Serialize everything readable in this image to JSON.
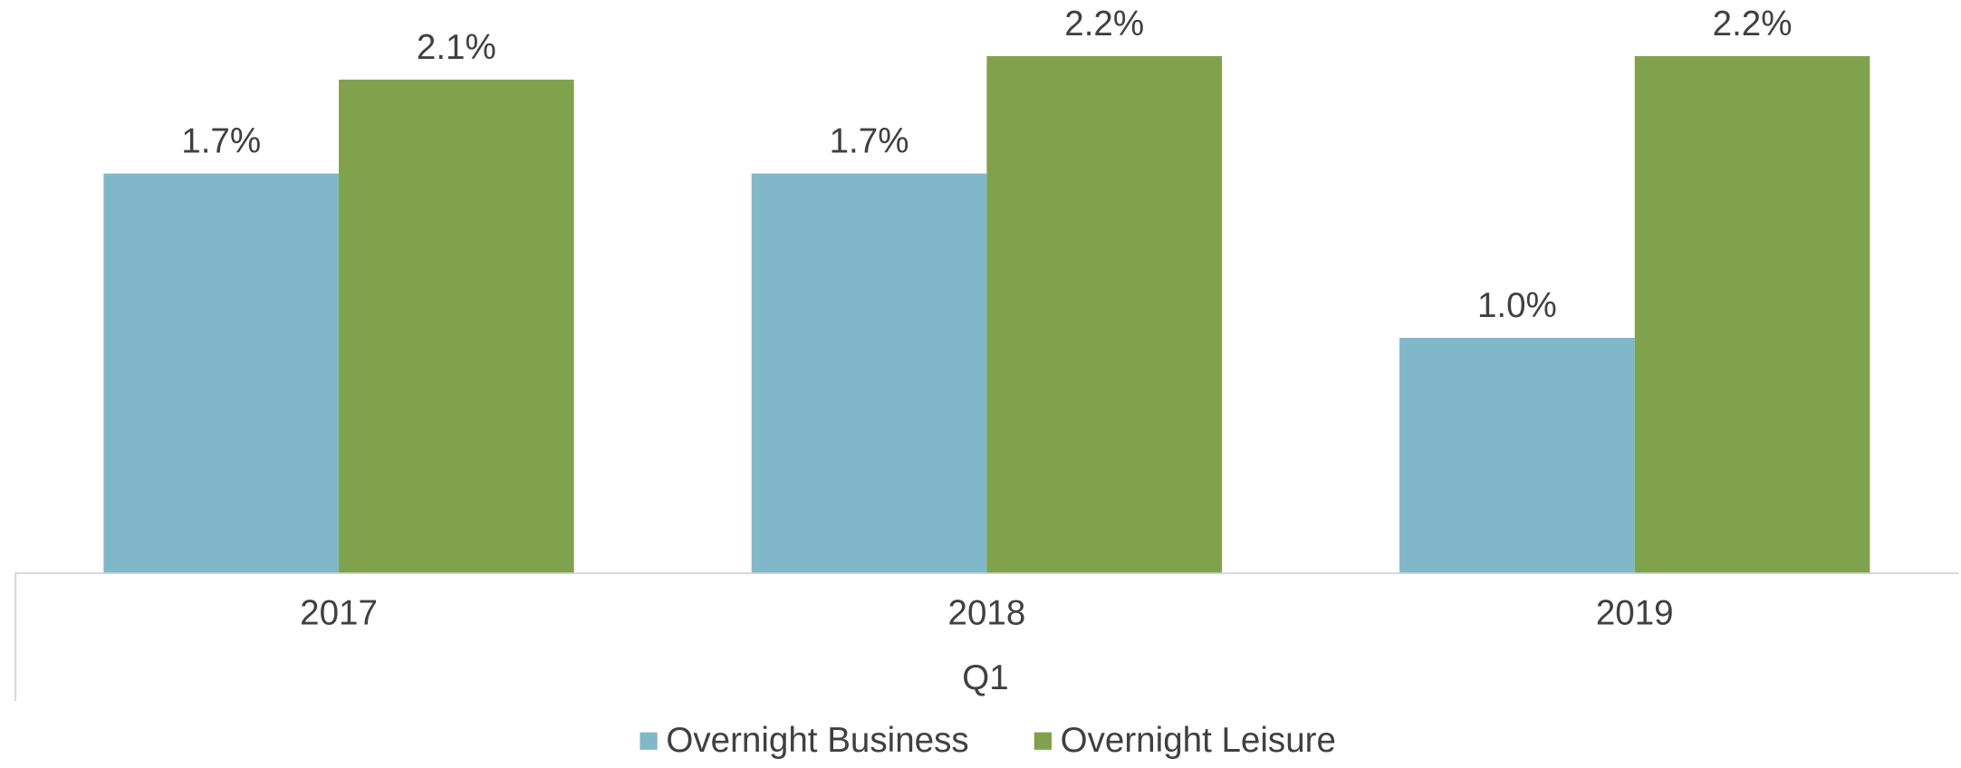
{
  "chart_data": {
    "type": "bar",
    "categories": [
      "2017",
      "2018",
      "2019"
    ],
    "xlabel": "Q1",
    "series": [
      {
        "name": "Overnight Business",
        "color": "#81b8c9",
        "values": [
          1.7,
          1.7,
          1.0
        ],
        "value_labels": [
          "1.7%",
          "1.7%",
          "1.0%"
        ]
      },
      {
        "name": "Overnight Leisure",
        "color": "#80a24c",
        "values": [
          2.1,
          2.2,
          2.2
        ],
        "value_labels": [
          "2.1%",
          "2.2%",
          "2.2%"
        ]
      }
    ],
    "legend": "bottom"
  }
}
